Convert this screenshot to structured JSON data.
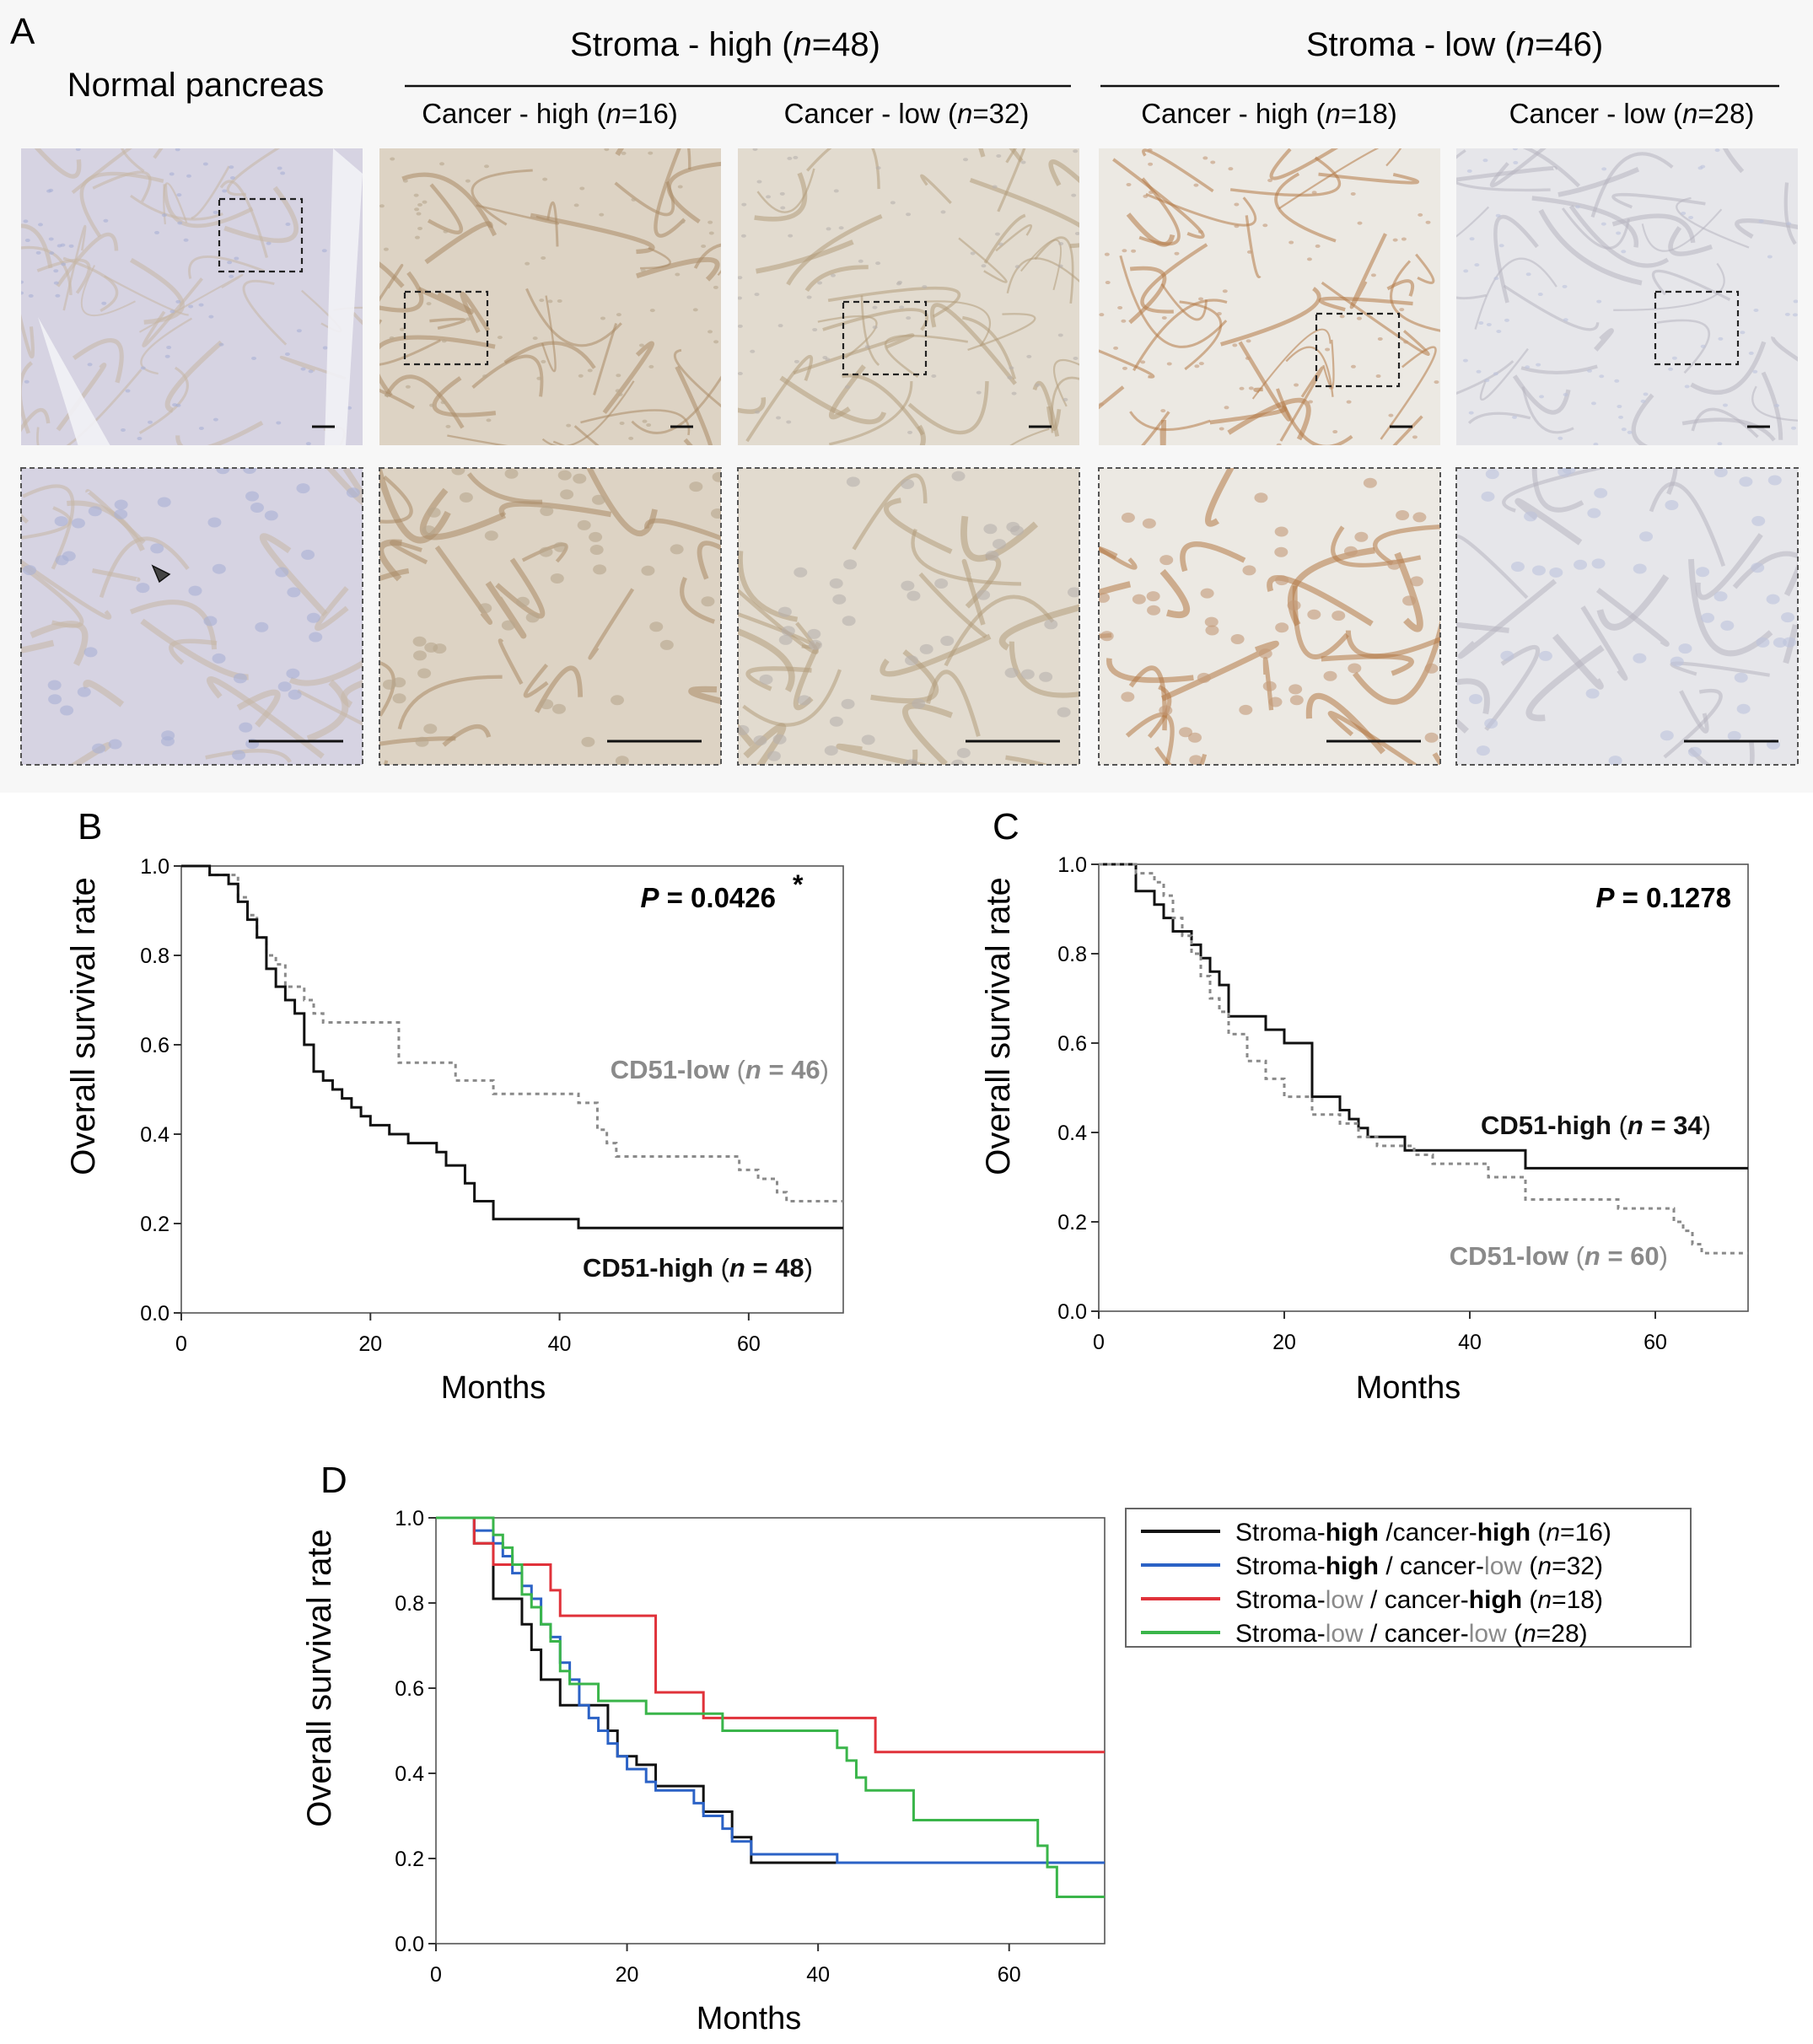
{
  "panel_a": {
    "letter": "A",
    "normal_label": "Normal pancreas",
    "groups": [
      {
        "title": "Stroma - high (",
        "n_italic": "n",
        "n_rest": "=48)"
      },
      {
        "title": "Stroma - low (",
        "n_italic": "n",
        "n_rest": "=46)"
      }
    ],
    "columns": [
      {
        "label": "Cancer - high (",
        "n_italic": "n",
        "n_rest": "=16)"
      },
      {
        "label": "Cancer - low (",
        "n_italic": "n",
        "n_rest": "=32)"
      },
      {
        "label": "Cancer - high (",
        "n_italic": "n",
        "n_rest": "=18)"
      },
      {
        "label": "Cancer - low (",
        "n_italic": "n",
        "n_rest": "=28)"
      }
    ],
    "tiles": [
      {
        "name": "normal",
        "bg": "#d6d3e2",
        "stain": "#c7b7a4",
        "cells": "#a9b0d6"
      },
      {
        "name": "stroma-high-cancer-high",
        "bg": "#ddd3c4",
        "stain": "#a98a66",
        "cells": "#b7a78d"
      },
      {
        "name": "stroma-high-cancer-low",
        "bg": "#e2dbcf",
        "stain": "#b39c7b",
        "cells": "#b8b0ad"
      },
      {
        "name": "stroma-low-cancer-high",
        "bg": "#ece9e3",
        "stain": "#b57a47",
        "cells": "#c39a78"
      },
      {
        "name": "stroma-low-cancer-low",
        "bg": "#e6e6ea",
        "stain": "#b7b5bf",
        "cells": "#bcc3dc"
      }
    ]
  },
  "chart_data": [
    {
      "panel": "B",
      "type": "line",
      "step": true,
      "xlabel": "Months",
      "ylabel": "Overall survival rate",
      "xlim": [
        0,
        70
      ],
      "ylim": [
        0.0,
        1.0
      ],
      "xticks": [
        "0",
        "20",
        "40",
        "60"
      ],
      "yticks": [
        "0.0",
        "0.2",
        "0.4",
        "0.6",
        "0.8",
        "1.0"
      ],
      "p_label": "P",
      "p_value": " = 0.0426",
      "p_mark": "*",
      "series": [
        {
          "name_main": "CD51-low",
          "name_n": "n",
          "name_rest": " = 46",
          "style": "dashed",
          "color": "#8a8a8a",
          "x": [
            0,
            3,
            6,
            7,
            8,
            9,
            10,
            11,
            13,
            14,
            15,
            20,
            23,
            26,
            29,
            31,
            33,
            36,
            42,
            44,
            45,
            46,
            50,
            59,
            61,
            63,
            64,
            70
          ],
          "y": [
            1.0,
            0.98,
            0.93,
            0.89,
            0.84,
            0.8,
            0.78,
            0.73,
            0.7,
            0.67,
            0.65,
            0.65,
            0.56,
            0.56,
            0.52,
            0.52,
            0.49,
            0.49,
            0.47,
            0.41,
            0.38,
            0.35,
            0.35,
            0.32,
            0.3,
            0.27,
            0.25,
            0.25
          ]
        },
        {
          "name_main": "CD51-high",
          "name_n": "n",
          "name_rest": " = 48",
          "style": "solid",
          "color": "#111111",
          "x": [
            0,
            3,
            5,
            6,
            7,
            8,
            9,
            10,
            11,
            12,
            13,
            14,
            15,
            16,
            17,
            18,
            19,
            20,
            22,
            24,
            27,
            28,
            30,
            31,
            33,
            42,
            70
          ],
          "y": [
            1.0,
            0.98,
            0.96,
            0.92,
            0.88,
            0.84,
            0.77,
            0.73,
            0.7,
            0.67,
            0.6,
            0.54,
            0.52,
            0.5,
            0.48,
            0.46,
            0.44,
            0.42,
            0.4,
            0.38,
            0.36,
            0.33,
            0.29,
            0.25,
            0.21,
            0.19,
            0.19
          ]
        }
      ]
    },
    {
      "panel": "C",
      "type": "line",
      "step": true,
      "xlabel": "Months",
      "ylabel": "Overall survival rate",
      "xlim": [
        0,
        70
      ],
      "ylim": [
        0.0,
        1.0
      ],
      "xticks": [
        "0",
        "20",
        "40",
        "60"
      ],
      "yticks": [
        "0.0",
        "0.2",
        "0.4",
        "0.6",
        "0.8",
        "1.0"
      ],
      "p_label": "P",
      "p_value": " = 0.1278",
      "p_mark": "",
      "series": [
        {
          "name_main": "CD51-high",
          "name_n": "n",
          "name_rest": " = 34",
          "style": "solid",
          "color": "#111111",
          "x": [
            0,
            4,
            6,
            7,
            8,
            9,
            10,
            11,
            12,
            13,
            14,
            16,
            18,
            20,
            23,
            26,
            27,
            28,
            29,
            31,
            33,
            35,
            46,
            70
          ],
          "y": [
            1.0,
            0.94,
            0.91,
            0.88,
            0.85,
            0.85,
            0.82,
            0.79,
            0.76,
            0.73,
            0.66,
            0.66,
            0.63,
            0.6,
            0.48,
            0.45,
            0.43,
            0.41,
            0.39,
            0.39,
            0.36,
            0.36,
            0.32,
            0.32
          ]
        },
        {
          "name_main": "CD51-low",
          "name_n": "n",
          "name_rest": " = 60",
          "style": "dashed",
          "color": "#8a8a8a",
          "x": [
            0,
            4,
            6,
            7,
            8,
            9,
            10,
            11,
            12,
            13,
            14,
            16,
            18,
            20,
            23,
            26,
            28,
            30,
            34,
            36,
            42,
            46,
            56,
            62,
            63,
            64,
            65,
            70
          ],
          "y": [
            1.0,
            0.98,
            0.96,
            0.93,
            0.88,
            0.84,
            0.8,
            0.75,
            0.7,
            0.67,
            0.62,
            0.56,
            0.52,
            0.48,
            0.44,
            0.42,
            0.39,
            0.37,
            0.35,
            0.33,
            0.3,
            0.25,
            0.23,
            0.2,
            0.18,
            0.15,
            0.13,
            0.13
          ]
        }
      ]
    },
    {
      "panel": "D",
      "type": "line",
      "step": true,
      "xlabel": "Months",
      "ylabel": "Overall survival rate",
      "xlim": [
        0,
        70
      ],
      "ylim": [
        0.0,
        1.0
      ],
      "xticks": [
        "0",
        "20",
        "40",
        "60"
      ],
      "yticks": [
        "0.0",
        "0.2",
        "0.4",
        "0.6",
        "0.8",
        "1.0"
      ],
      "legend_position": "right",
      "series": [
        {
          "legend": [
            [
              "Stroma-",
              "n"
            ],
            [
              "high",
              "b"
            ],
            [
              " /cancer-",
              "n"
            ],
            [
              "high",
              "b"
            ],
            [
              " (",
              "n"
            ],
            [
              "n",
              "i"
            ],
            [
              "=16)",
              "n"
            ]
          ],
          "color": "#111111",
          "x": [
            0,
            4,
            6,
            9,
            10,
            11,
            13,
            14,
            18,
            19,
            21,
            23,
            27,
            28,
            31,
            33,
            70
          ],
          "y": [
            1.0,
            0.94,
            0.81,
            0.75,
            0.69,
            0.62,
            0.56,
            0.56,
            0.5,
            0.44,
            0.42,
            0.37,
            0.37,
            0.31,
            0.25,
            0.19,
            0.19
          ]
        },
        {
          "legend": [
            [
              "Stroma-",
              "n"
            ],
            [
              "high",
              "b"
            ],
            [
              " / cancer-",
              "n"
            ],
            [
              "low",
              "g"
            ],
            [
              " (",
              "n"
            ],
            [
              "n",
              "i"
            ],
            [
              "=32)",
              "n"
            ]
          ],
          "color": "#2b62c6",
          "x": [
            0,
            4,
            6,
            7,
            8,
            9,
            10,
            11,
            12,
            13,
            14,
            15,
            16,
            17,
            18,
            19,
            20,
            22,
            23,
            27,
            28,
            30,
            31,
            33,
            42,
            70
          ],
          "y": [
            1.0,
            0.97,
            0.94,
            0.91,
            0.87,
            0.84,
            0.81,
            0.75,
            0.72,
            0.66,
            0.62,
            0.56,
            0.53,
            0.5,
            0.47,
            0.44,
            0.41,
            0.38,
            0.36,
            0.33,
            0.3,
            0.27,
            0.24,
            0.21,
            0.19,
            0.19
          ]
        },
        {
          "legend": [
            [
              "Stroma-",
              "n"
            ],
            [
              "low",
              "g"
            ],
            [
              " / cancer-",
              "n"
            ],
            [
              "high",
              "b"
            ],
            [
              " (",
              "n"
            ],
            [
              "n",
              "i"
            ],
            [
              "=18)",
              "n"
            ]
          ],
          "color": "#e0323a",
          "x": [
            0,
            4,
            6,
            8,
            9,
            12,
            13,
            14,
            23,
            28,
            29,
            46,
            70
          ],
          "y": [
            1.0,
            0.94,
            0.89,
            0.89,
            0.89,
            0.83,
            0.77,
            0.77,
            0.59,
            0.53,
            0.53,
            0.45,
            0.45
          ]
        },
        {
          "legend": [
            [
              "Stroma-",
              "n"
            ],
            [
              "low",
              "g"
            ],
            [
              " / cancer-",
              "n"
            ],
            [
              "low",
              "g"
            ],
            [
              " (",
              "n"
            ],
            [
              "n",
              "i"
            ],
            [
              "=28)",
              "n"
            ]
          ],
          "color": "#3ab54a",
          "x": [
            0,
            6,
            7,
            8,
            9,
            10,
            11,
            12,
            13,
            14,
            17,
            22,
            26,
            30,
            42,
            43,
            44,
            45,
            50,
            60,
            63,
            64,
            65,
            70
          ],
          "y": [
            1.0,
            0.96,
            0.93,
            0.89,
            0.82,
            0.79,
            0.75,
            0.71,
            0.64,
            0.61,
            0.57,
            0.54,
            0.54,
            0.5,
            0.46,
            0.43,
            0.39,
            0.36,
            0.29,
            0.29,
            0.23,
            0.18,
            0.11,
            0.11
          ]
        }
      ]
    }
  ]
}
